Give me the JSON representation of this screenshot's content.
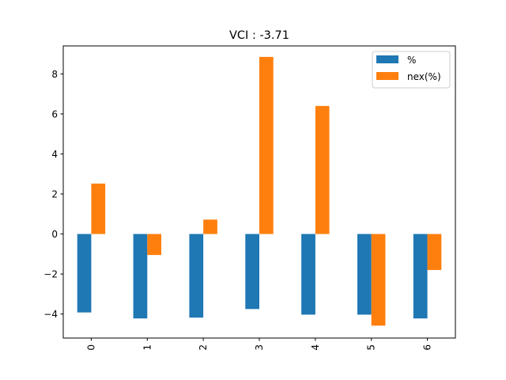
{
  "chart_data": {
    "type": "bar",
    "title": "VCI : -3.71",
    "xlabel": "",
    "ylabel": "",
    "categories": [
      "0",
      "1",
      "2",
      "3",
      "4",
      "5",
      "6"
    ],
    "series": [
      {
        "name": "%",
        "color": "#1f77b4",
        "values": [
          -3.92,
          -4.22,
          -4.18,
          -3.75,
          -4.03,
          -4.03,
          -4.22
        ]
      },
      {
        "name": "nex(%)",
        "color": "#ff7f0e",
        "values": [
          2.52,
          -1.05,
          0.72,
          8.85,
          6.4,
          -4.58,
          -1.8
        ]
      }
    ],
    "ylim": [
      -5.2,
      9.4
    ],
    "yticks": [
      -4,
      -2,
      0,
      2,
      4,
      6,
      8
    ],
    "legend_position": "top-right",
    "grid": false
  }
}
